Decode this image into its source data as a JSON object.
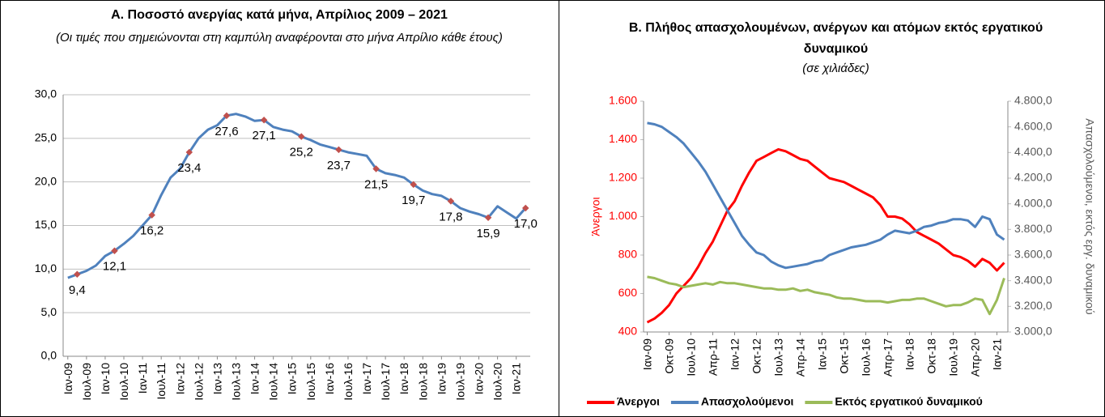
{
  "chart_data": [
    {
      "type": "line",
      "title": "Α. Ποσοστό ανεργίας κατά μήνα, Απρίλιος 2009 – 2021",
      "subtitle": "(Οι τιμές που σημειώνονται στη καμπύλη αναφέρονται στο μήνα Απρίλιο κάθε έτους)",
      "categories": [
        "Ιαν-09",
        null,
        "Ιουλ-09",
        null,
        "Ιαν-10",
        null,
        "Ιουλ-10",
        null,
        "Ιαν-11",
        null,
        "Ιουλ-11",
        null,
        "Ιαν-12",
        null,
        "Ιουλ-12",
        null,
        "Ιαν-13",
        null,
        "Ιουλ-13",
        null,
        "Ιαν-14",
        null,
        "Ιουλ-14",
        null,
        "Ιαν-15",
        null,
        "Ιουλ-15",
        null,
        "Ιαν-16",
        null,
        "Ιουλ-16",
        null,
        "Ιαν-17",
        null,
        "Ιουλ-17",
        null,
        "Ιαν-18",
        null,
        "Ιουλ-18",
        null,
        "Ιαν-19",
        null,
        "Ιουλ-19",
        null,
        "Ιαν-20",
        null,
        "Ιουλ-20",
        null,
        "Ιαν-21",
        null
      ],
      "series": [
        {
          "color": "#4f81bd",
          "marker_color": "#c0504d",
          "values": [
            9.0,
            9.4,
            9.8,
            10.4,
            11.5,
            12.1,
            12.9,
            13.8,
            15.0,
            16.2,
            18.5,
            20.5,
            21.5,
            23.4,
            25.0,
            26.0,
            26.5,
            27.6,
            27.8,
            27.5,
            27.0,
            27.1,
            26.3,
            26.0,
            25.8,
            25.2,
            24.8,
            24.3,
            24.0,
            23.7,
            23.4,
            23.2,
            23.0,
            21.5,
            21.0,
            20.8,
            20.5,
            19.7,
            19.0,
            18.6,
            18.4,
            17.8,
            17.0,
            16.6,
            16.3,
            15.9,
            17.2,
            16.5,
            15.8,
            17.0
          ],
          "value_labels": [
            null,
            "9,4",
            null,
            null,
            null,
            "12,1",
            null,
            null,
            null,
            "16,2",
            null,
            null,
            null,
            "23,4",
            null,
            null,
            null,
            "27,6",
            null,
            null,
            null,
            "27,1",
            null,
            null,
            null,
            "25,2",
            null,
            null,
            null,
            "23,7",
            null,
            null,
            null,
            "21,5",
            null,
            null,
            null,
            "19,7",
            null,
            null,
            null,
            "17,8",
            null,
            null,
            null,
            "15,9",
            null,
            null,
            null,
            "17,0"
          ]
        }
      ],
      "ylim": [
        0,
        30
      ],
      "yticks": [
        {
          "value": 0,
          "label": "0,0"
        },
        {
          "value": 5,
          "label": "5,0"
        },
        {
          "value": 10,
          "label": "10,0"
        },
        {
          "value": 15,
          "label": "15,0"
        },
        {
          "value": 20,
          "label": "20,0"
        },
        {
          "value": 25,
          "label": "25,0"
        },
        {
          "value": 30,
          "label": "30,0"
        }
      ],
      "grid": true
    },
    {
      "type": "line",
      "title": "Β. Πλήθος απασχολουμένων, ανέργων και ατόμων εκτός εργατικού δυναμικού",
      "subtitle": "(σε χιλιάδες)",
      "ylabel": "Άνεργοι",
      "ylabel_color": "#ff0000",
      "y2label": "Απασχολούμενοι, εκτός εργ. δυναμικού",
      "y2label_color": "#595959",
      "categories": [
        "Ιαν-09",
        null,
        null,
        "Οκτ-09",
        null,
        null,
        "Ιουλ-10",
        null,
        null,
        "Απρ-11",
        null,
        null,
        "Ιαν-12",
        null,
        null,
        "Οκτ-12",
        null,
        null,
        "Ιουλ-13",
        null,
        null,
        "Απρ-14",
        null,
        null,
        "Ιαν-15",
        null,
        null,
        "Οκτ-15",
        null,
        null,
        "Ιουλ-16",
        null,
        null,
        "Απρ-17",
        null,
        null,
        "Ιαν-18",
        null,
        null,
        "Οκτ-18",
        null,
        null,
        "Ιουλ-19",
        null,
        null,
        "Απρ-20",
        null,
        null,
        "Ιαν-21",
        null
      ],
      "series": [
        {
          "name": "Άνεργοι",
          "color": "#ff0000",
          "values": [
            450,
            470,
            500,
            540,
            600,
            640,
            680,
            740,
            810,
            870,
            950,
            1030,
            1080,
            1160,
            1230,
            1290,
            1310,
            1330,
            1350,
            1340,
            1320,
            1300,
            1290,
            1260,
            1230,
            1200,
            1190,
            1180,
            1160,
            1140,
            1120,
            1100,
            1060,
            1000,
            1000,
            990,
            960,
            920,
            900,
            880,
            860,
            830,
            800,
            790,
            770,
            740,
            780,
            760,
            720,
            760
          ]
        },
        {
          "name": "Απασχολούμενοι",
          "color": "#4f81bd",
          "axis": "y2",
          "values": [
            4630,
            4620,
            4600,
            4560,
            4520,
            4470,
            4400,
            4330,
            4250,
            4150,
            4050,
            3950,
            3850,
            3750,
            3680,
            3620,
            3600,
            3550,
            3520,
            3500,
            3510,
            3520,
            3530,
            3550,
            3560,
            3600,
            3620,
            3640,
            3660,
            3670,
            3680,
            3700,
            3720,
            3760,
            3790,
            3780,
            3770,
            3790,
            3820,
            3830,
            3850,
            3860,
            3880,
            3880,
            3870,
            3820,
            3900,
            3880,
            3760,
            3720
          ]
        },
        {
          "name": "Εκτός εργατικού δυναμικού",
          "color": "#9bbb59",
          "axis": "y2",
          "values": [
            3430,
            3420,
            3400,
            3380,
            3370,
            3350,
            3360,
            3370,
            3380,
            3370,
            3390,
            3380,
            3380,
            3370,
            3360,
            3350,
            3340,
            3340,
            3330,
            3330,
            3340,
            3320,
            3330,
            3310,
            3300,
            3290,
            3270,
            3260,
            3260,
            3250,
            3240,
            3240,
            3240,
            3230,
            3240,
            3250,
            3250,
            3260,
            3260,
            3240,
            3220,
            3200,
            3210,
            3210,
            3230,
            3260,
            3250,
            3140,
            3250,
            3420
          ]
        }
      ],
      "ylim": [
        400,
        1600
      ],
      "yticks": [
        400,
        600,
        800,
        {
          "value": 1000,
          "label": "1.000"
        },
        {
          "value": 1200,
          "label": "1.200"
        },
        {
          "value": 1400,
          "label": "1.400"
        },
        {
          "value": 1600,
          "label": "1.600"
        }
      ],
      "y2lim": [
        3000,
        4800
      ],
      "y2ticks": [
        {
          "value": 3000,
          "label": "3.000,0"
        },
        {
          "value": 3200,
          "label": "3.200,0"
        },
        {
          "value": 3400,
          "label": "3.400,0"
        },
        {
          "value": 3600,
          "label": "3.600,0"
        },
        {
          "value": 3800,
          "label": "3.800,0"
        },
        {
          "value": 4000,
          "label": "4.000,0"
        },
        {
          "value": 4200,
          "label": "4.200,0"
        },
        {
          "value": 4400,
          "label": "4.400,0"
        },
        {
          "value": 4600,
          "label": "4.600,0"
        },
        {
          "value": 4800,
          "label": "4.800,0"
        }
      ],
      "grid": false,
      "legend": "bottom"
    }
  ]
}
